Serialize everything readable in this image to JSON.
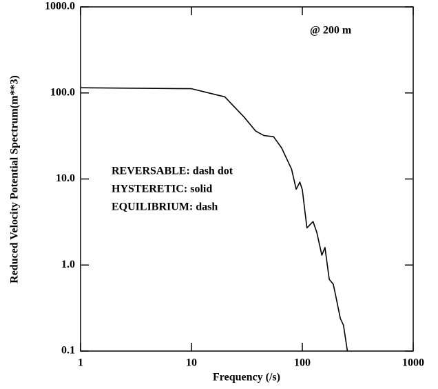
{
  "chart_data": {
    "type": "line",
    "xlabel": "Frequency (/s)",
    "ylabel": "Reduced Velocity Potential Spectrum(m**3)",
    "annotations": [
      "@ 200 m",
      "REVERSABLE:  dash dot",
      "HYSTERETIC:  solid",
      "EQUILIBRIUM: dash"
    ],
    "xscale": "log",
    "yscale": "log",
    "xlim": [
      1,
      1000
    ],
    "ylim": [
      0.1,
      1000
    ],
    "xticks": [
      1,
      10,
      100,
      1000
    ],
    "yticks": [
      {
        "value": 0.1,
        "label": "0.1"
      },
      {
        "value": 1,
        "label": "1.0"
      },
      {
        "value": 10,
        "label": "10.0"
      },
      {
        "value": 100,
        "label": "100.0"
      },
      {
        "value": 1000,
        "label": "1000.0"
      }
    ],
    "series": [
      {
        "color": "#000000",
        "x": [
          1,
          10,
          20,
          30,
          38,
          45,
          55,
          65,
          80,
          88,
          95,
          100,
          110,
          125,
          135,
          150,
          160,
          175,
          190,
          200,
          220,
          235,
          255
        ],
        "values": [
          115,
          112,
          90,
          52,
          36,
          32,
          31,
          23,
          13,
          7.6,
          9.2,
          7.5,
          2.7,
          3.2,
          2.4,
          1.3,
          1.6,
          0.68,
          0.6,
          0.44,
          0.24,
          0.2,
          0.1
        ]
      }
    ]
  }
}
